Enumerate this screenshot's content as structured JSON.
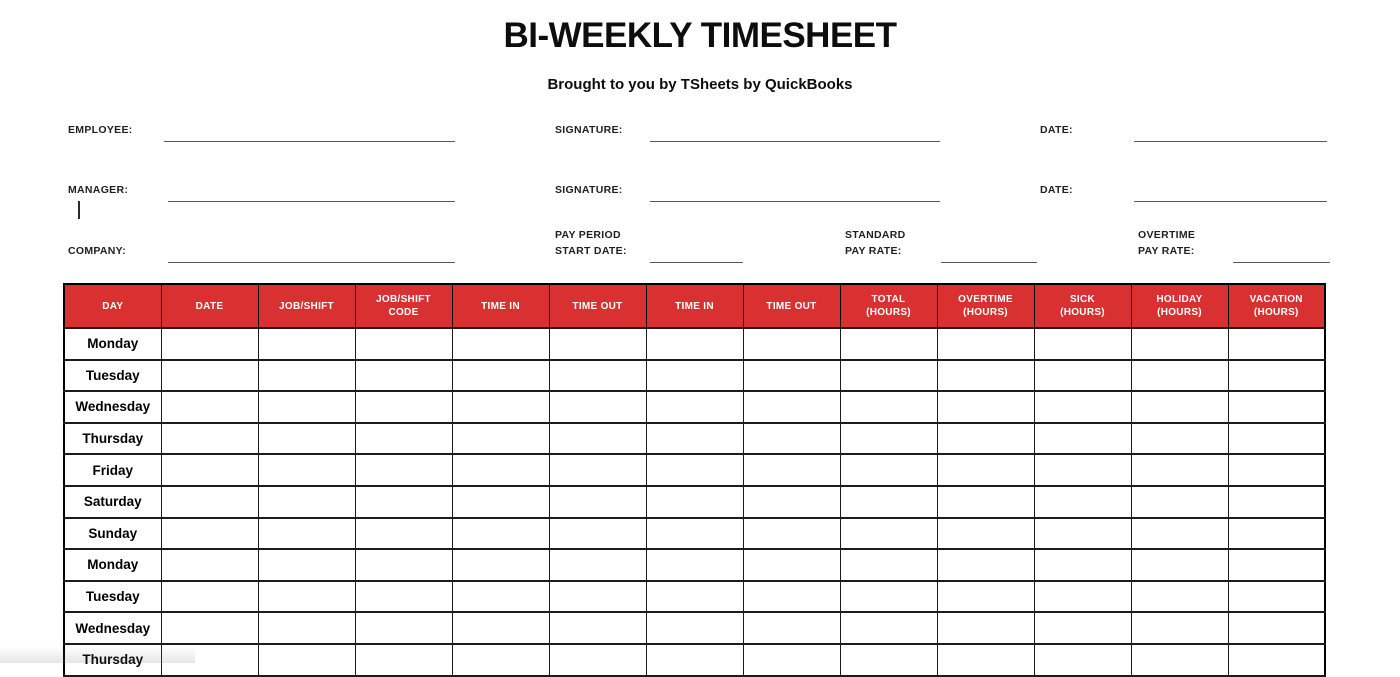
{
  "title": "BI-WEEKLY TIMESHEET",
  "subtitle": "Brought to you by TSheets by QuickBooks",
  "colors": {
    "header_red": "#D93131",
    "border_black": "#1c1c1c",
    "line_gray": "#595959"
  },
  "form": {
    "employee": {
      "label": "EMPLOYEE:",
      "value": ""
    },
    "employee_signature": {
      "label": "SIGNATURE:",
      "value": ""
    },
    "employee_date": {
      "label": "DATE:",
      "value": ""
    },
    "manager": {
      "label": "MANAGER:",
      "value": ""
    },
    "manager_signature": {
      "label": "SIGNATURE:",
      "value": ""
    },
    "manager_date": {
      "label": "DATE:",
      "value": ""
    },
    "company": {
      "label": "COMPANY:",
      "value": ""
    },
    "pay_period_start_date": {
      "label": "PAY PERIOD\nSTART DATE:",
      "value": ""
    },
    "standard_pay_rate": {
      "label": "STANDARD\nPAY RATE:",
      "value": ""
    },
    "overtime_pay_rate": {
      "label": "OVERTIME\nPAY RATE:",
      "value": ""
    }
  },
  "table": {
    "columns": [
      "DAY",
      "DATE",
      "JOB/SHIFT",
      "JOB/SHIFT\nCODE",
      "TIME IN",
      "TIME OUT",
      "TIME IN",
      "TIME OUT",
      "TOTAL\n(HOURS)",
      "OVERTIME\n(HOURS)",
      "SICK\n(HOURS)",
      "HOLIDAY\n(HOURS)",
      "VACATION\n(HOURS)"
    ],
    "rows": [
      {
        "day": "Monday",
        "values": [
          "",
          "",
          "",
          "",
          "",
          "",
          "",
          "",
          "",
          "",
          "",
          ""
        ]
      },
      {
        "day": "Tuesday",
        "values": [
          "",
          "",
          "",
          "",
          "",
          "",
          "",
          "",
          "",
          "",
          "",
          ""
        ]
      },
      {
        "day": "Wednesday",
        "values": [
          "",
          "",
          "",
          "",
          "",
          "",
          "",
          "",
          "",
          "",
          "",
          ""
        ]
      },
      {
        "day": "Thursday",
        "values": [
          "",
          "",
          "",
          "",
          "",
          "",
          "",
          "",
          "",
          "",
          "",
          ""
        ]
      },
      {
        "day": "Friday",
        "values": [
          "",
          "",
          "",
          "",
          "",
          "",
          "",
          "",
          "",
          "",
          "",
          ""
        ]
      },
      {
        "day": "Saturday",
        "values": [
          "",
          "",
          "",
          "",
          "",
          "",
          "",
          "",
          "",
          "",
          "",
          ""
        ]
      },
      {
        "day": "Sunday",
        "values": [
          "",
          "",
          "",
          "",
          "",
          "",
          "",
          "",
          "",
          "",
          "",
          ""
        ]
      },
      {
        "day": "Monday",
        "values": [
          "",
          "",
          "",
          "",
          "",
          "",
          "",
          "",
          "",
          "",
          "",
          ""
        ]
      },
      {
        "day": "Tuesday",
        "values": [
          "",
          "",
          "",
          "",
          "",
          "",
          "",
          "",
          "",
          "",
          "",
          ""
        ]
      },
      {
        "day": "Wednesday",
        "values": [
          "",
          "",
          "",
          "",
          "",
          "",
          "",
          "",
          "",
          "",
          "",
          ""
        ]
      },
      {
        "day": "Thursday",
        "values": [
          "",
          "",
          "",
          "",
          "",
          "",
          "",
          "",
          "",
          "",
          "",
          ""
        ]
      }
    ]
  }
}
